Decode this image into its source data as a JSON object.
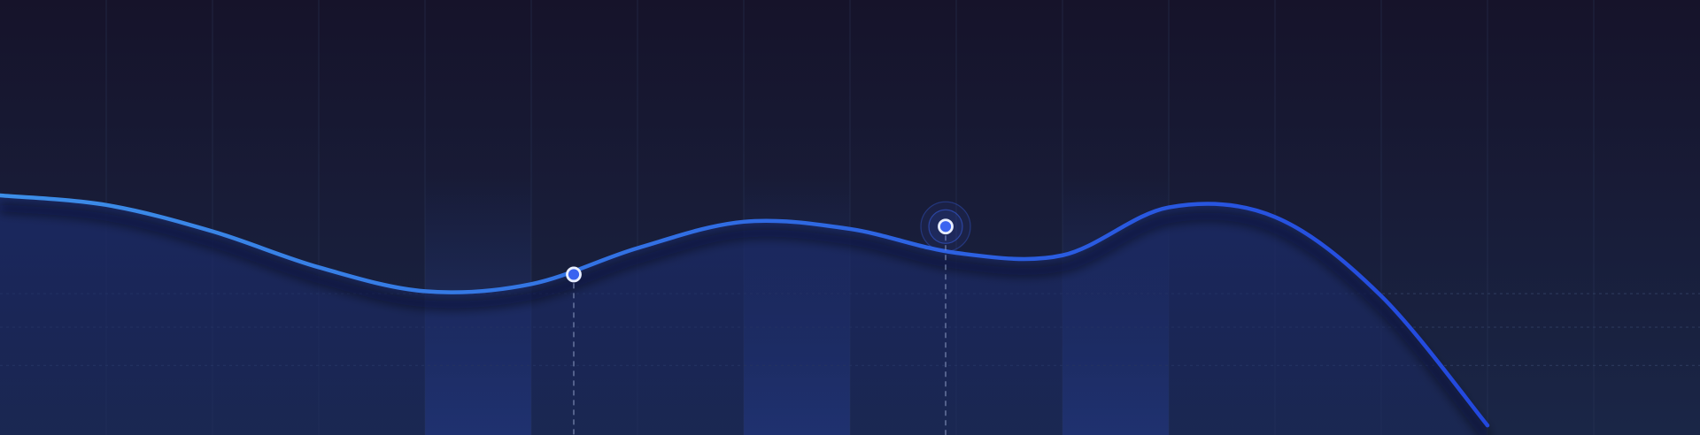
{
  "colors": {
    "background_top": "#16132a",
    "background_bottom": "#1a2647",
    "line_start": "#3d8fe8",
    "line_end": "#2348de",
    "area_fill": "#1b2a66",
    "column_highlight": "#22377a",
    "marker_fill": "#3a63f0",
    "marker_stroke": "#e8eeff",
    "grid": "#2c3a5c"
  },
  "chart_data": {
    "type": "line",
    "title": "",
    "xlabel": "",
    "ylabel": "",
    "grid": {
      "vertical": true,
      "horizontal": true,
      "horizontal_style": "dotted"
    },
    "axes_visible": false,
    "xlim": [
      0,
      16
    ],
    "ylim": [
      0,
      100
    ],
    "horizontal_gridlines": [
      29,
      45,
      59
    ],
    "highlighted_columns": [
      [
        4,
        5
      ],
      [
        7,
        8
      ],
      [
        10,
        11
      ]
    ],
    "series": [
      {
        "area_filled": true,
        "x": [
          0,
          1,
          2,
          3,
          4,
          5,
          6,
          7,
          8,
          9,
          10,
          11,
          12,
          13,
          14
        ],
        "y": [
          100,
          96,
          85,
          70,
          60,
          63,
          78,
          89,
          86,
          76,
          75,
          95,
          91,
          58,
          4
        ]
      }
    ],
    "markers": [
      {
        "x": 5.4,
        "y": 67,
        "style": "dot",
        "guide_line": true
      },
      {
        "x": 8.9,
        "y": 87,
        "style": "pulse",
        "guide_line": true
      }
    ]
  }
}
